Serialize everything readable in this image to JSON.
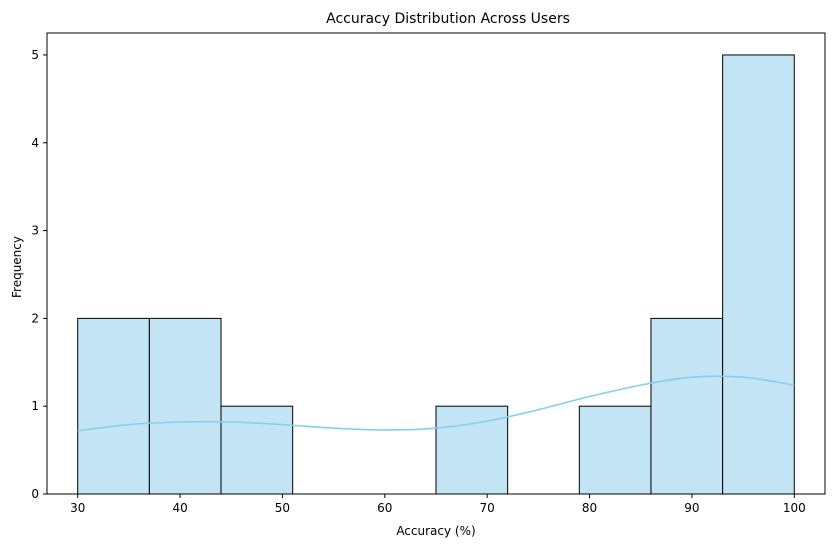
{
  "chart_data": {
    "type": "bar",
    "title": "Accuracy Distribution Across Users",
    "xlabel": "Accuracy (%)",
    "ylabel": "Frequency",
    "xlim": [
      27,
      103
    ],
    "ylim": [
      0,
      5.25
    ],
    "x_ticks": [
      30,
      40,
      50,
      60,
      70,
      80,
      90,
      100
    ],
    "y_ticks": [
      0,
      1,
      2,
      3,
      4,
      5
    ],
    "bins": [
      {
        "start": 30,
        "end": 37,
        "count": 2
      },
      {
        "start": 37,
        "end": 44,
        "count": 2
      },
      {
        "start": 44,
        "end": 51,
        "count": 1
      },
      {
        "start": 51,
        "end": 58,
        "count": 0
      },
      {
        "start": 58,
        "end": 65,
        "count": 0
      },
      {
        "start": 65,
        "end": 72,
        "count": 1
      },
      {
        "start": 72,
        "end": 79,
        "count": 0
      },
      {
        "start": 79,
        "end": 86,
        "count": 1
      },
      {
        "start": 86,
        "end": 93,
        "count": 2
      },
      {
        "start": 93,
        "end": 100,
        "count": 5
      }
    ],
    "kde": {
      "x": [
        30,
        35,
        40,
        45,
        50,
        55,
        60,
        65,
        70,
        75,
        80,
        85,
        90,
        95,
        100
      ],
      "y": [
        0.72,
        0.79,
        0.82,
        0.82,
        0.79,
        0.75,
        0.73,
        0.75,
        0.83,
        0.96,
        1.11,
        1.24,
        1.33,
        1.33,
        1.24
      ]
    },
    "grid": false,
    "colors": {
      "bar_fill": "#c3e4f4",
      "bar_edge": "#000000",
      "kde_line": "#87ceeb"
    }
  }
}
